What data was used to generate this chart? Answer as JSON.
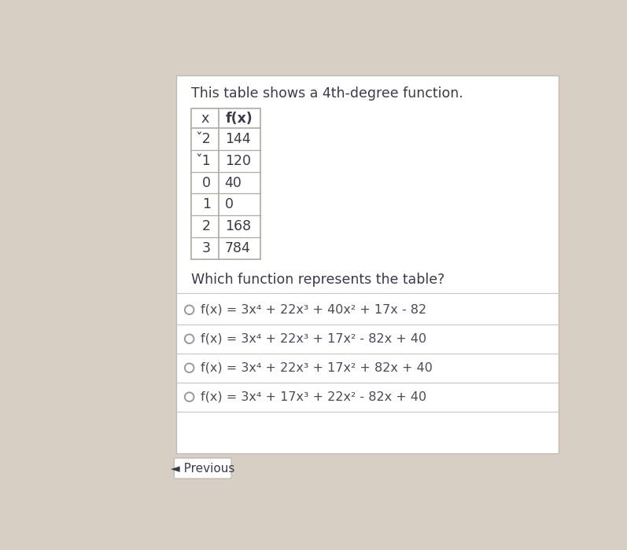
{
  "bg_color": "#d8cfc4",
  "card_color": "#f5f2ee",
  "white_color": "#ffffff",
  "title": "This table shows a 4th-degree function.",
  "table_headers": [
    "x",
    "f(x)"
  ],
  "table_data": [
    [
      "ˇ2",
      "144"
    ],
    [
      "ˇ1",
      "120"
    ],
    [
      "0",
      "40"
    ],
    [
      "1",
      "0"
    ],
    [
      "2",
      "168"
    ],
    [
      "3",
      "784"
    ]
  ],
  "question": "Which function represents the table?",
  "options": [
    "f(x) = 3x⁴ + 22x³ + 40x² + 17x - 82",
    "f(x) = 3x⁴ + 22x³ + 17x² - 82x + 40",
    "f(x) = 3x⁴ + 22x³ + 17x² + 82x + 40",
    "f(x) = 3x⁴ + 17x³ + 22x² - 82x + 40"
  ],
  "footer_text": "◄ Previous",
  "title_fontsize": 12.5,
  "table_fontsize": 12.5,
  "question_fontsize": 12.5,
  "option_fontsize": 11.5,
  "footer_fontsize": 11,
  "text_color": "#3a3a4a",
  "option_text_color": "#4a4a5a",
  "line_color": "#c8c4be",
  "table_border_color": "#b0aaa0",
  "radio_color": "#999999",
  "card_border_color": "#c0bab2"
}
